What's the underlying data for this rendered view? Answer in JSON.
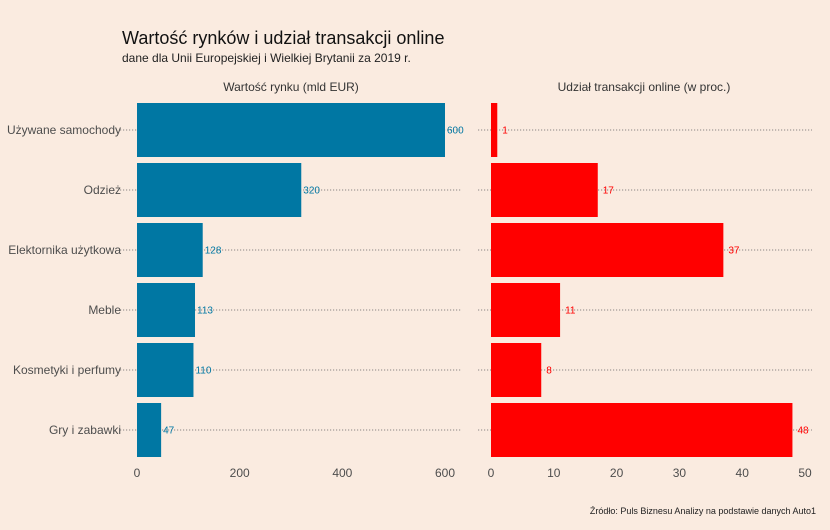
{
  "title": "Wartość rynków i udział transakcji online",
  "subtitle": "dane dla Unii Europejskiej i Wielkiej Brytanii za 2019 r.",
  "caption": "Źródło: Puls Biznesu Analizy na podstawie danych Auto1",
  "colors": {
    "left_bars": "#0077a3",
    "right_bars": "#ff0000",
    "background": "#faebe0"
  },
  "chart_data": [
    {
      "type": "bar",
      "orientation": "horizontal",
      "panel_title": "Wartość rynku (mld EUR)",
      "categories": [
        "Używane samochody",
        "Odzież",
        "Elektornika użytkowa",
        "Meble",
        "Kosmetyki i perfumy",
        "Gry i zabawki"
      ],
      "values": [
        600,
        320,
        128,
        113,
        110,
        47
      ],
      "xlim": [
        0,
        600
      ],
      "xticks": [
        0,
        200,
        400,
        600
      ],
      "color": "#0077a3"
    },
    {
      "type": "bar",
      "orientation": "horizontal",
      "panel_title": "Udział transakcji online (w proc.)",
      "categories": [
        "Używane samochody",
        "Odzież",
        "Elektornika użytkowa",
        "Meble",
        "Kosmetyki i perfumy",
        "Gry i zabawki"
      ],
      "values": [
        1,
        17,
        37,
        11,
        8,
        48
      ],
      "xlim": [
        0,
        50
      ],
      "xticks": [
        0,
        10,
        20,
        30,
        40,
        50
      ],
      "color": "#ff0000"
    }
  ]
}
